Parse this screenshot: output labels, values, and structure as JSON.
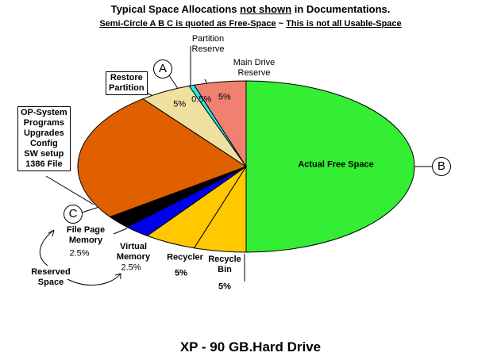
{
  "chart_data": {
    "type": "pie",
    "title_parts": [
      "Typical Space Allocations ",
      "not shown",
      " in Documentations."
    ],
    "subtitle_parts": [
      "Semi-Circle A B C is quoted as Free-Space",
      " ~ ",
      "This is not all Usable-Space"
    ],
    "categories": [
      "Actual Free Space",
      "Recycle\nBin",
      "Recycler",
      "Virtual\nMemory",
      "File Page\nMemory",
      "OP-System\nPrograms\nUpgrades\nConfig\nSW setup\n1386 File",
      "Restore\nPartition",
      "Partition\nReserve",
      "Main Drive\nReserve"
    ],
    "values": [
      50,
      5,
      5,
      2.5,
      2.5,
      24.5,
      5,
      0.5,
      5
    ],
    "value_labels": [
      null,
      "5%",
      "5%",
      "2.5%",
      "2.5%",
      null,
      "5%",
      "0.5%",
      "5%"
    ],
    "colors": [
      "#33ee33",
      "#ffc800",
      "#ffc800",
      "#0000ee",
      "#000000",
      "#e06000",
      "#f0e0a0",
      "#22eeee",
      "#f08070"
    ],
    "annotations": [
      "A",
      "B",
      "C",
      "Reserved\nSpace"
    ],
    "footer": "XP - 90 GB.Hard Drive"
  }
}
